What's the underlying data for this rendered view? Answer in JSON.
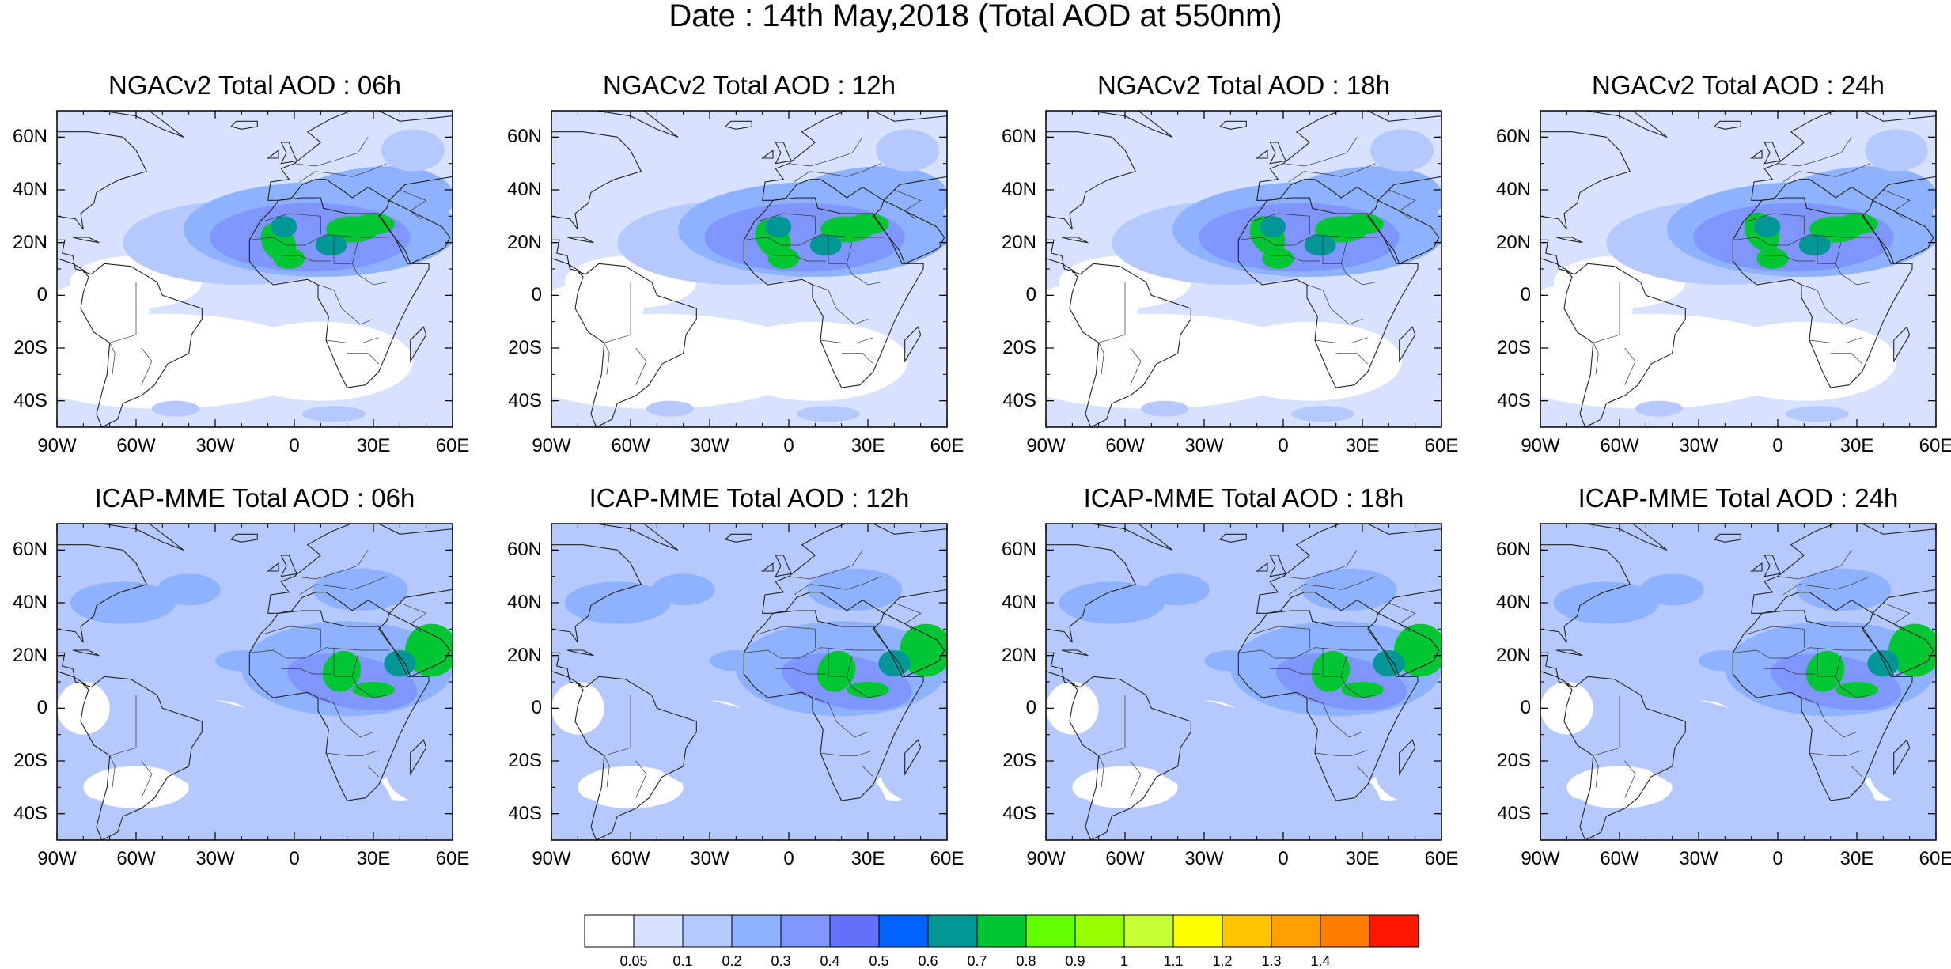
{
  "title": "Date : 14th May,2018 (Total AOD at 550nm)",
  "lat_labels": [
    "60N",
    "40N",
    "20N",
    "0",
    "20S",
    "40S"
  ],
  "lat_values": [
    60,
    40,
    20,
    0,
    -20,
    -40
  ],
  "lon_labels": [
    "90W",
    "60W",
    "30W",
    "0",
    "30E",
    "60E"
  ],
  "lon_values": [
    -90,
    -60,
    -30,
    0,
    30,
    60
  ],
  "domain": {
    "lon_min": -90,
    "lon_max": 60,
    "lat_min": -50,
    "lat_max": 70
  },
  "panels": [
    {
      "title": "NGACv2 Total AOD : 06h",
      "model": "NGACv2",
      "hour": 6
    },
    {
      "title": "NGACv2 Total AOD : 12h",
      "model": "NGACv2",
      "hour": 12
    },
    {
      "title": "NGACv2 Total AOD : 18h",
      "model": "NGACv2",
      "hour": 18
    },
    {
      "title": "NGACv2 Total AOD : 24h",
      "model": "NGACv2",
      "hour": 24
    },
    {
      "title": "ICAP-MME Total AOD : 06h",
      "model": "ICAP-MME",
      "hour": 6
    },
    {
      "title": "ICAP-MME Total AOD : 12h",
      "model": "ICAP-MME",
      "hour": 12
    },
    {
      "title": "ICAP-MME Total AOD : 18h",
      "model": "ICAP-MME",
      "hour": 18
    },
    {
      "title": "ICAP-MME Total AOD : 24h",
      "model": "ICAP-MME",
      "hour": 24
    }
  ],
  "colorbar": {
    "labels": [
      "0.05",
      "0.1",
      "0.2",
      "0.3",
      "0.4",
      "0.5",
      "0.6",
      "0.7",
      "0.8",
      "0.9",
      "1",
      "1.1",
      "1.2",
      "1.3",
      "1.4"
    ],
    "colors": [
      "#ffffff",
      "#d6e2ff",
      "#b5c9ff",
      "#8eb2ff",
      "#7f96ff",
      "#6370f8",
      "#0063ff",
      "#009696",
      "#00c633",
      "#63ff00",
      "#96ff00",
      "#c6ff33",
      "#ffff00",
      "#ffc400",
      "#ffa000",
      "#ff7d00",
      "#ff1900"
    ]
  }
}
